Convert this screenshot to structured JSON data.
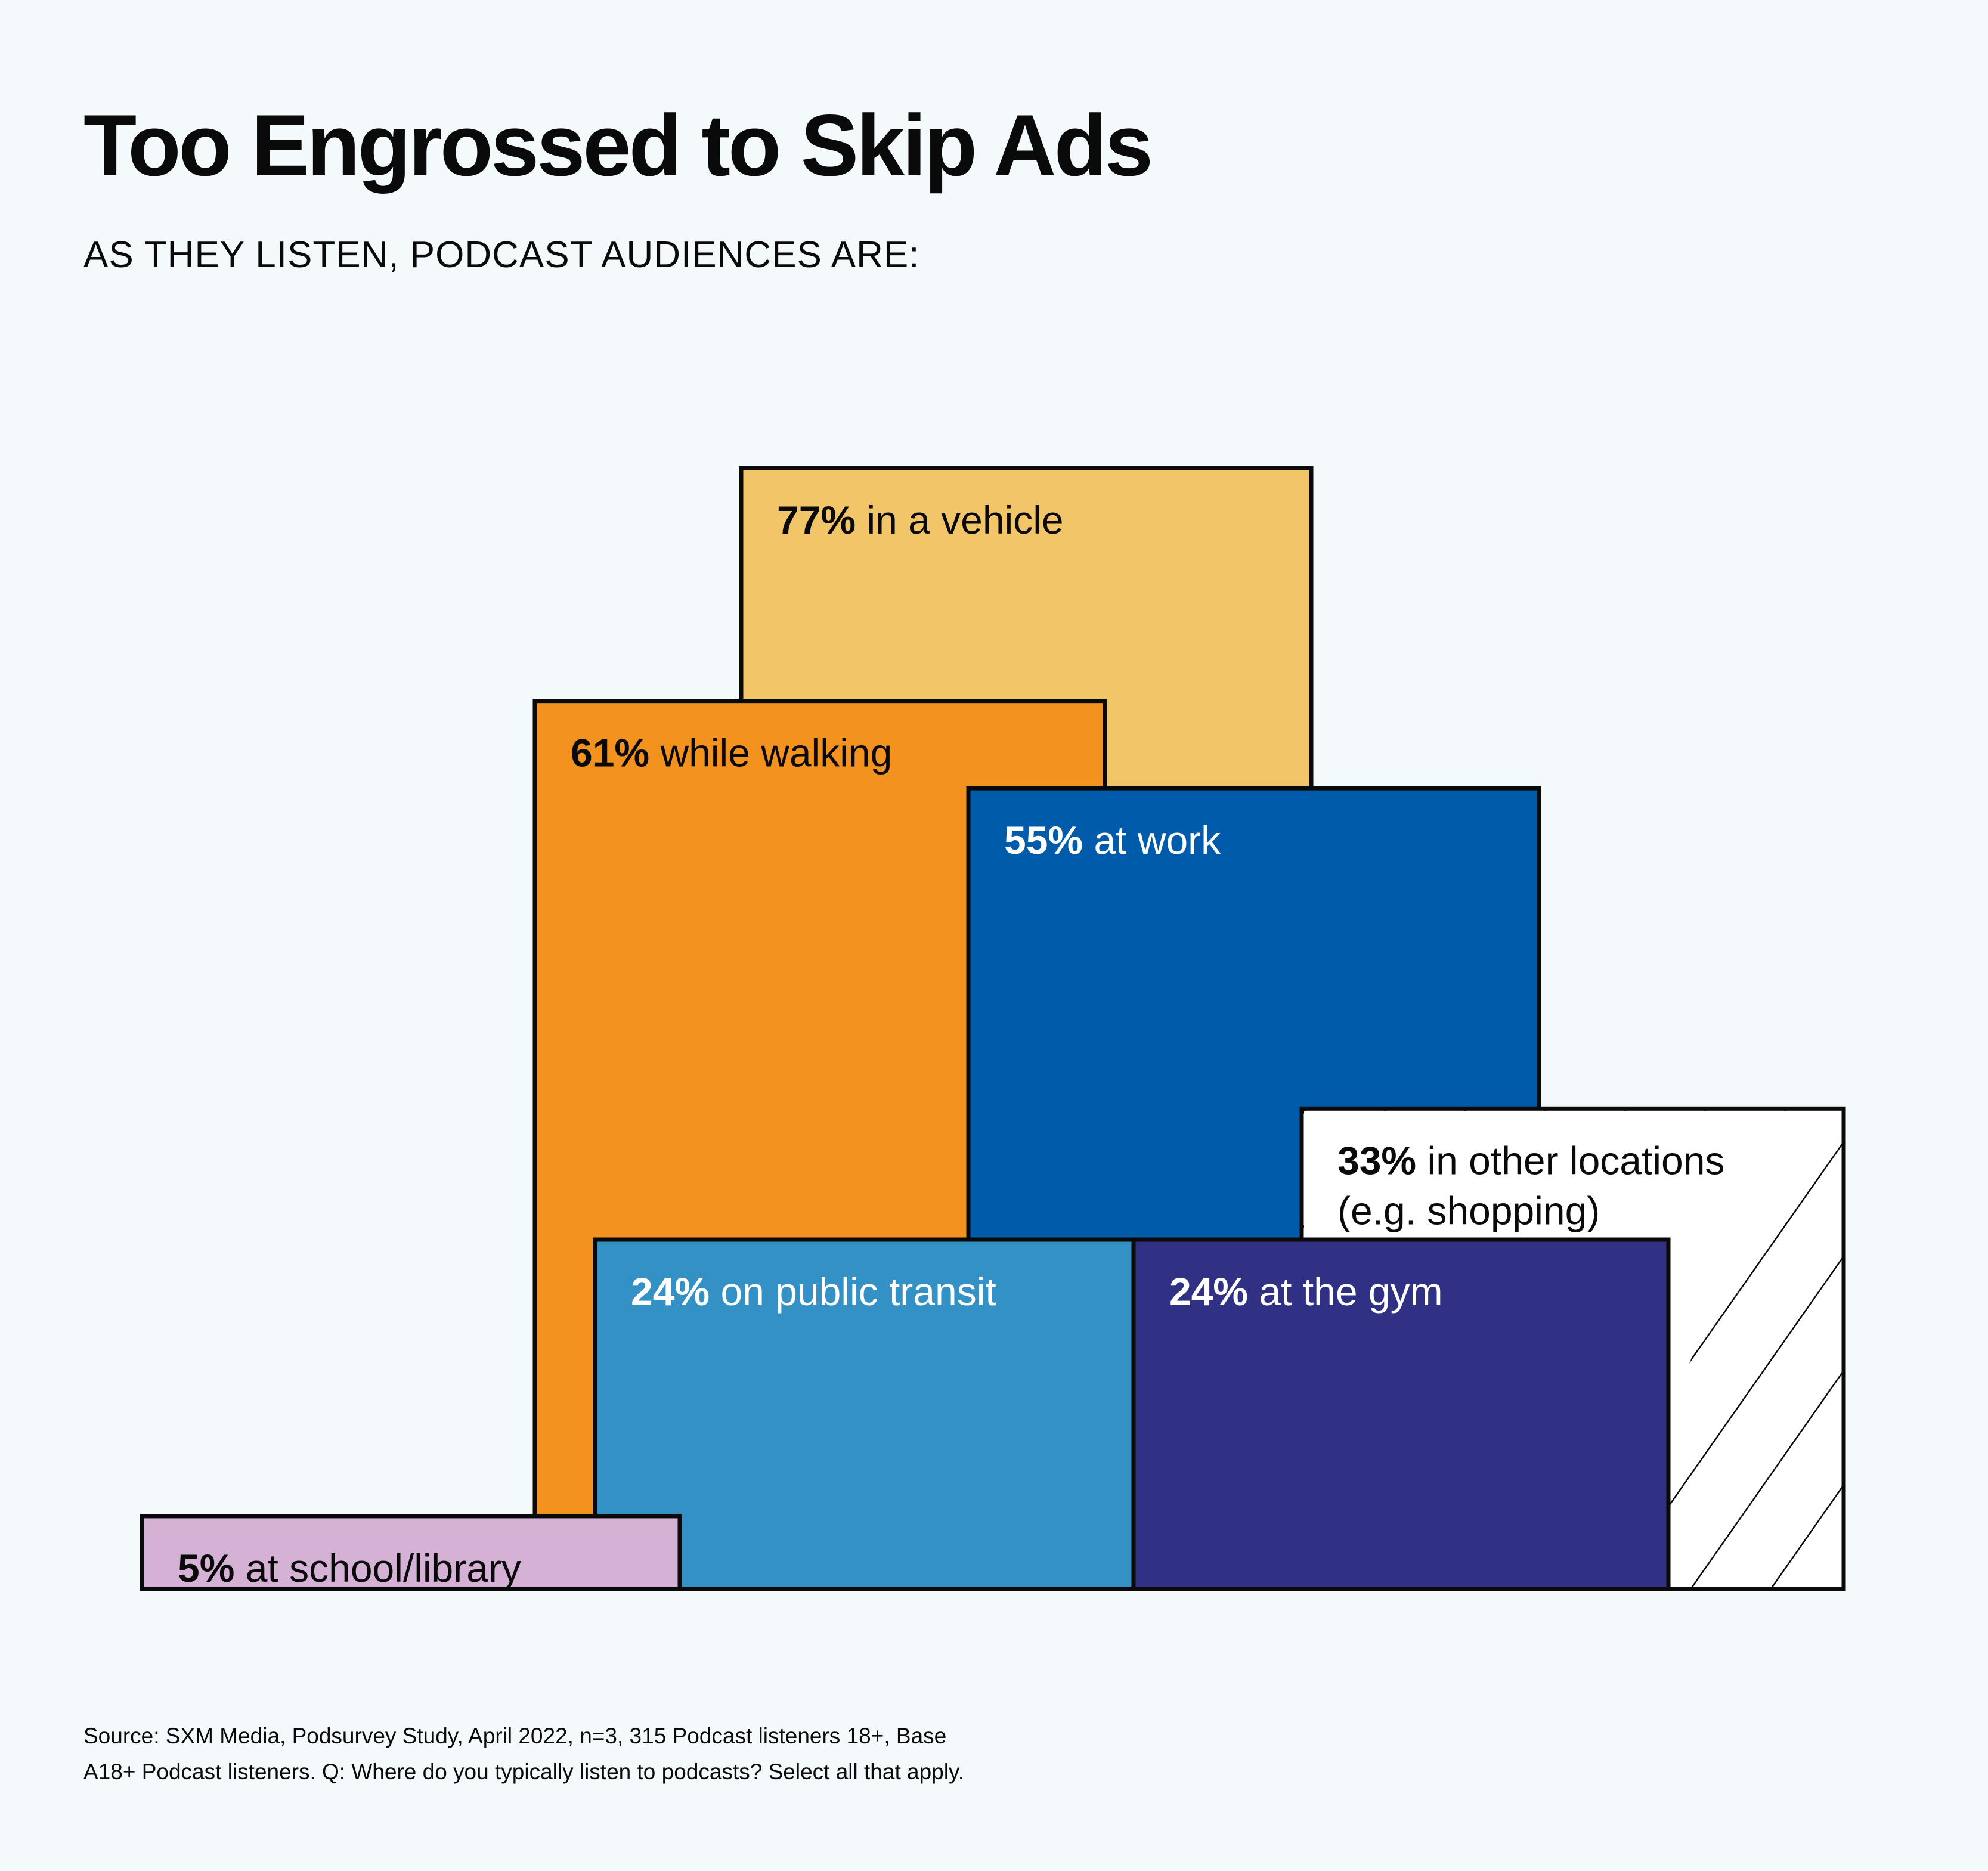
{
  "title": "Too Engrossed to Skip Ads",
  "subtitle": "AS THEY LISTEN, PODCAST AUDIENCES ARE:",
  "chart_data": {
    "type": "bar",
    "title": "Too Engrossed to Skip Ads",
    "subtitle": "AS THEY LISTEN, PODCAST AUDIENCES ARE:",
    "unit": "%",
    "categories": [
      "in a vehicle",
      "while walking",
      "at work",
      "in other locations (e.g. shopping)",
      "on public transit",
      "at the gym",
      "at school/library"
    ],
    "values": [
      77,
      61,
      55,
      33,
      24,
      24,
      5
    ],
    "marks": [
      {
        "key": "vehicle",
        "value": 77,
        "pct": "77%",
        "label_lines": [
          "in a vehicle"
        ],
        "color": "#f1c568",
        "text_color": "#0a0a0a",
        "pattern": "none"
      },
      {
        "key": "walking",
        "value": 61,
        "pct": "61%",
        "label_lines": [
          "while walking"
        ],
        "color": "#f3921f",
        "text_color": "#0a0a0a",
        "pattern": "none"
      },
      {
        "key": "work",
        "value": 55,
        "pct": "55%",
        "label_lines": [
          "at work"
        ],
        "color": "#005caa",
        "text_color": "#ffffff",
        "pattern": "none"
      },
      {
        "key": "other",
        "value": 33,
        "pct": "33%",
        "label_lines": [
          "in other locations",
          "(e.g. shopping)"
        ],
        "color": "#ffffff",
        "text_color": "#0a0a0a",
        "pattern": "diagonal-hatch"
      },
      {
        "key": "transit",
        "value": 24,
        "pct": "24%",
        "label_lines": [
          "on public transit"
        ],
        "color": "#3391c5",
        "text_color": "#ffffff",
        "pattern": "none"
      },
      {
        "key": "gym",
        "value": 24,
        "pct": "24%",
        "label_lines": [
          "at the gym"
        ],
        "color": "#303084",
        "text_color": "#ffffff",
        "pattern": "none"
      },
      {
        "key": "school",
        "value": 5,
        "pct": "5%",
        "label_lines": [
          "at school/library"
        ],
        "color": "#d4b1d5",
        "text_color": "#0a0a0a",
        "pattern": "none"
      }
    ],
    "outline_color": "#0a0a0a",
    "ylim": [
      0,
      77
    ],
    "grid": false,
    "legend": "none"
  },
  "source": {
    "line1": "Source: SXM Media, Podsurvey Study, April 2022, n=3, 315 Podcast listeners 18+, Base",
    "line2": "A18+ Podcast listeners. Q: Where do you typically listen to podcasts? Select all that apply."
  }
}
